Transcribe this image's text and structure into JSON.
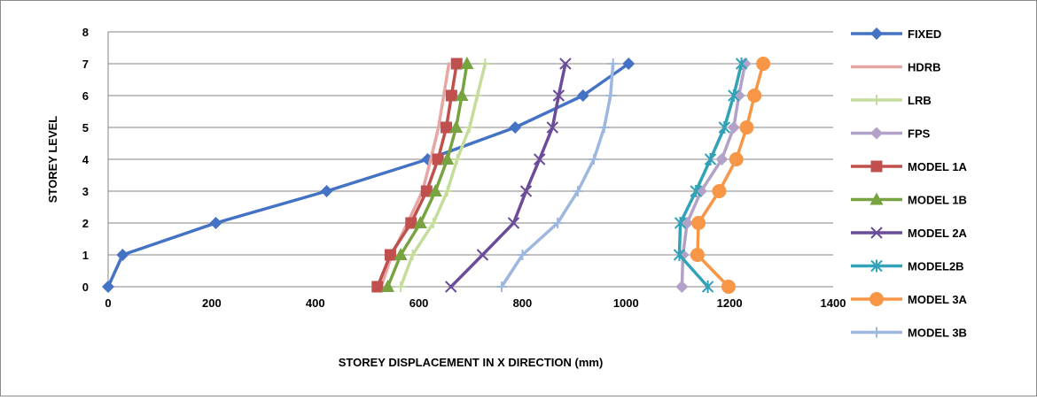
{
  "chart_data": {
    "type": "line",
    "xlabel": "STOREY DISPLACEMENT IN X DIRECTION (mm)",
    "ylabel": "STOREY LEVEL",
    "xlim": [
      0,
      1400
    ],
    "ylim": [
      0,
      8
    ],
    "xticks": [
      "0",
      "200",
      "400",
      "600",
      "800",
      "1000",
      "1200",
      "1400"
    ],
    "yticks": [
      "0",
      "1",
      "2",
      "3",
      "4",
      "5",
      "6",
      "7",
      "8"
    ],
    "grid": "horizontal",
    "legend_position": "right",
    "series": [
      {
        "name": "FIXED",
        "color": "#4472C4",
        "marker": "diamond",
        "x": [
          0,
          28,
          208,
          422,
          617,
          786,
          917,
          1005
        ],
        "y": [
          0,
          1,
          2,
          3,
          4,
          5,
          6,
          7
        ]
      },
      {
        "name": "HDRB",
        "color": "#E6A6A4",
        "marker": "none",
        "x": [
          527,
          548,
          578,
          607,
          623,
          638,
          648,
          658
        ],
        "y": [
          0,
          1,
          2,
          3,
          4,
          5,
          6,
          7
        ]
      },
      {
        "name": "LRB",
        "color": "#C4DC9C",
        "marker": "plus",
        "x": [
          565,
          588,
          628,
          655,
          674,
          698,
          713,
          728
        ],
        "y": [
          0,
          1,
          2,
          3,
          4,
          5,
          6,
          7
        ]
      },
      {
        "name": "FPS",
        "color": "#B3A2C7",
        "marker": "diamond",
        "x": [
          1108,
          1110,
          1118,
          1145,
          1185,
          1208,
          1218,
          1230
        ],
        "y": [
          0,
          1,
          2,
          3,
          4,
          5,
          6,
          7
        ]
      },
      {
        "name": "MODEL 1A",
        "color": "#C0504D",
        "marker": "square",
        "x": [
          520,
          545,
          585,
          615,
          637,
          653,
          663,
          673
        ],
        "y": [
          0,
          1,
          2,
          3,
          4,
          5,
          6,
          7
        ]
      },
      {
        "name": "MODEL 1B",
        "color": "#77A341",
        "marker": "triangle",
        "x": [
          540,
          565,
          603,
          632,
          655,
          672,
          683,
          693
        ],
        "y": [
          0,
          1,
          2,
          3,
          4,
          5,
          6,
          7
        ]
      },
      {
        "name": "MODEL 2A",
        "color": "#6B4C9A",
        "marker": "x",
        "x": [
          662,
          723,
          783,
          807,
          833,
          858,
          870,
          883
        ],
        "y": [
          0,
          1,
          2,
          3,
          4,
          5,
          6,
          7
        ]
      },
      {
        "name": "MODEL2B",
        "color": "#31A2B8",
        "marker": "star",
        "x": [
          1158,
          1103,
          1105,
          1135,
          1163,
          1190,
          1208,
          1223
        ],
        "y": [
          0,
          1,
          2,
          3,
          4,
          5,
          6,
          7
        ]
      },
      {
        "name": "MODEL 3A",
        "color": "#F79646",
        "marker": "circle",
        "x": [
          1198,
          1138,
          1140,
          1180,
          1213,
          1233,
          1248,
          1265
        ],
        "y": [
          0,
          1,
          2,
          3,
          4,
          5,
          6,
          7
        ]
      },
      {
        "name": "MODEL 3B",
        "color": "#9DB7DE",
        "marker": "plus",
        "x": [
          760,
          800,
          868,
          907,
          938,
          958,
          970,
          975
        ],
        "y": [
          0,
          1,
          2,
          3,
          4,
          5,
          6,
          7
        ]
      }
    ]
  }
}
